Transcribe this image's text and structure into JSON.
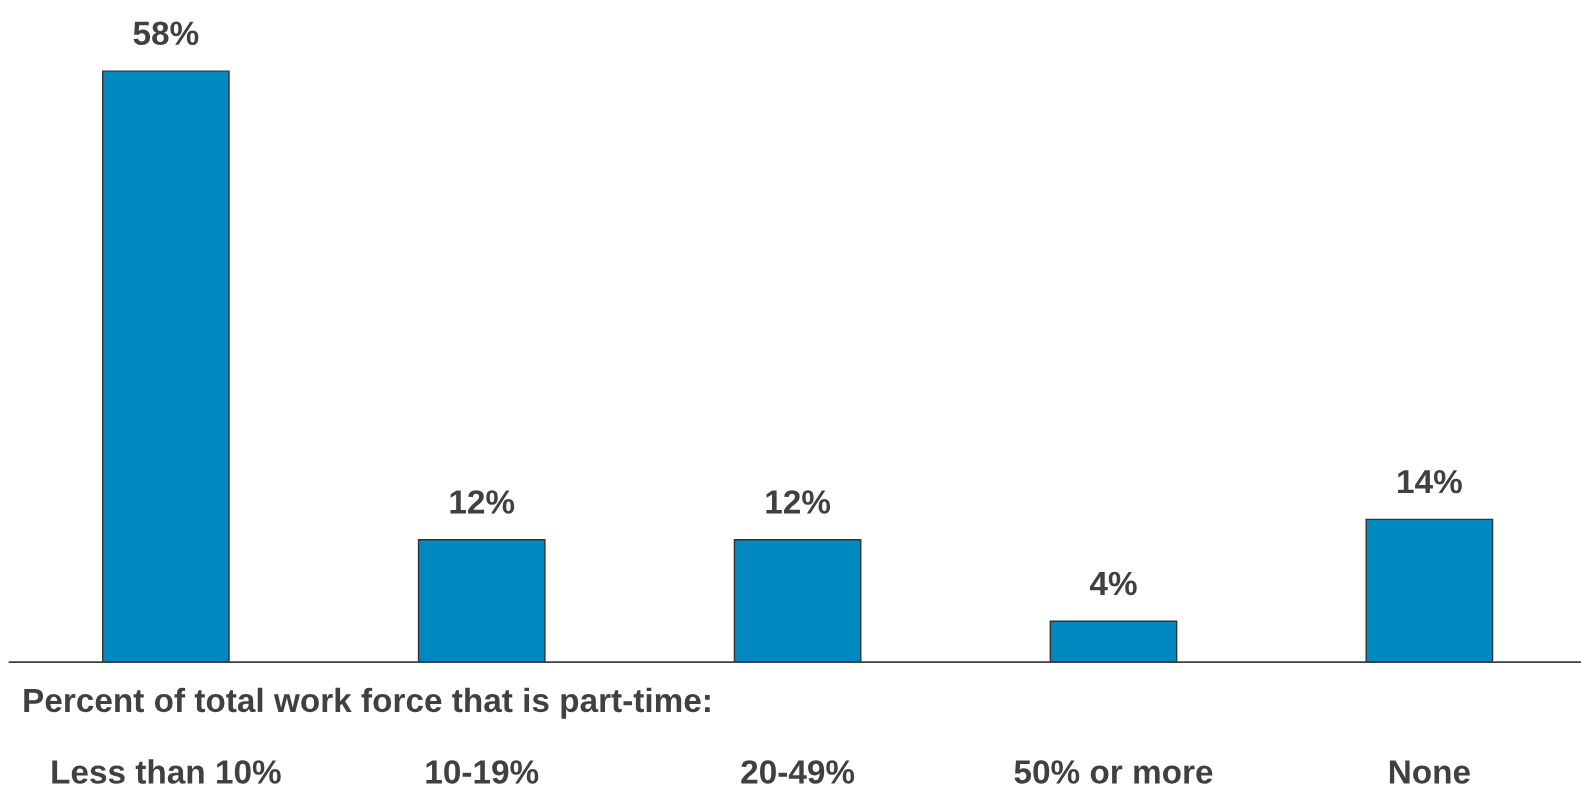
{
  "chart_data": {
    "type": "bar",
    "xlabel": "Percent of total work force that is part-time:",
    "categories": [
      "Less than 10%",
      "10-19%",
      "20-49%",
      "50% or more",
      "None"
    ],
    "values": [
      58,
      12,
      12,
      4,
      14
    ],
    "value_labels": [
      "58%",
      "12%",
      "12%",
      "4%",
      "14%"
    ],
    "color": "#0088c0",
    "grid": false,
    "legend": false
  }
}
